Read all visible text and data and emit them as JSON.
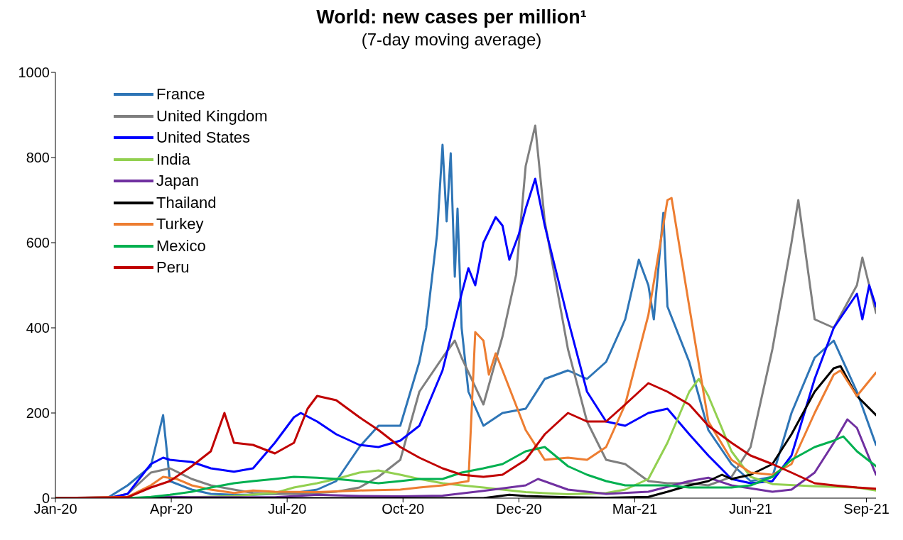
{
  "chart_data": {
    "type": "line",
    "title": "World: new cases per million¹",
    "subtitle": "(7-day moving average)",
    "xlim": [
      "2020-01-22",
      "2021-09-15"
    ],
    "xticks": [
      {
        "value": "2020-01-22",
        "label": "Jan-20"
      },
      {
        "value": "2020-04-16",
        "label": "Apr-20"
      },
      {
        "value": "2020-07-10",
        "label": "Jul-20"
      },
      {
        "value": "2020-10-03",
        "label": "Oct-20"
      },
      {
        "value": "2020-12-27",
        "label": "Dec-20"
      },
      {
        "value": "2021-03-22",
        "label": "Mar-21"
      },
      {
        "value": "2021-06-15",
        "label": "Jun-21"
      },
      {
        "value": "2021-09-08",
        "label": "Sep-21"
      }
    ],
    "ylim": [
      0,
      1000
    ],
    "yticks": [
      0,
      200,
      400,
      600,
      800,
      1000
    ],
    "grid": false,
    "legend": "top left",
    "marker": "none",
    "line_style": "solid",
    "series": [
      {
        "name": "France",
        "color": "#2e75b6",
        "x": [
          "2020-01-22",
          "2020-03-01",
          "2020-03-15",
          "2020-04-01",
          "2020-04-10",
          "2020-04-15",
          "2020-05-01",
          "2020-05-15",
          "2020-06-01",
          "2020-06-15",
          "2020-07-01",
          "2020-07-15",
          "2020-08-01",
          "2020-08-15",
          "2020-09-01",
          "2020-09-15",
          "2020-10-01",
          "2020-10-15",
          "2020-10-20",
          "2020-10-28",
          "2020-11-01",
          "2020-11-04",
          "2020-11-07",
          "2020-11-10",
          "2020-11-12",
          "2020-11-15",
          "2020-11-20",
          "2020-12-01",
          "2020-12-15",
          "2021-01-01",
          "2021-01-15",
          "2021-02-01",
          "2021-02-15",
          "2021-03-01",
          "2021-03-15",
          "2021-03-25",
          "2021-04-01",
          "2021-04-05",
          "2021-04-10",
          "2021-04-12",
          "2021-04-15",
          "2021-05-01",
          "2021-05-15",
          "2021-06-01",
          "2021-06-15",
          "2021-07-01",
          "2021-07-15",
          "2021-08-01",
          "2021-08-15",
          "2021-09-01",
          "2021-09-15"
        ],
        "values": [
          0,
          2,
          30,
          75,
          195,
          40,
          20,
          10,
          8,
          8,
          10,
          12,
          20,
          40,
          120,
          170,
          170,
          320,
          400,
          620,
          830,
          650,
          810,
          520,
          680,
          400,
          250,
          170,
          200,
          210,
          280,
          300,
          280,
          320,
          420,
          560,
          500,
          420,
          600,
          670,
          450,
          320,
          160,
          80,
          40,
          50,
          200,
          330,
          370,
          250,
          125
        ]
      },
      {
        "name": "United Kingdom",
        "color": "#7f7f7f",
        "x": [
          "2020-01-22",
          "2020-03-01",
          "2020-03-15",
          "2020-04-01",
          "2020-04-15",
          "2020-05-01",
          "2020-05-15",
          "2020-06-01",
          "2020-06-15",
          "2020-07-01",
          "2020-07-15",
          "2020-08-01",
          "2020-08-15",
          "2020-09-01",
          "2020-09-15",
          "2020-10-01",
          "2020-10-15",
          "2020-11-01",
          "2020-11-10",
          "2020-11-15",
          "2020-12-01",
          "2020-12-15",
          "2020-12-25",
          "2021-01-01",
          "2021-01-08",
          "2021-01-15",
          "2021-02-01",
          "2021-02-15",
          "2021-03-01",
          "2021-03-15",
          "2021-04-01",
          "2021-04-15",
          "2021-05-01",
          "2021-05-15",
          "2021-06-01",
          "2021-06-15",
          "2021-07-01",
          "2021-07-15",
          "2021-07-20",
          "2021-08-01",
          "2021-08-15",
          "2021-09-01",
          "2021-09-05",
          "2021-09-15"
        ],
        "values": [
          0,
          0,
          10,
          60,
          70,
          45,
          30,
          20,
          12,
          10,
          10,
          12,
          15,
          25,
          50,
          90,
          250,
          330,
          370,
          330,
          220,
          380,
          525,
          780,
          875,
          650,
          350,
          180,
          90,
          80,
          40,
          35,
          35,
          30,
          50,
          120,
          350,
          600,
          700,
          420,
          400,
          500,
          565,
          435
        ]
      },
      {
        "name": "United States",
        "color": "#0000ff",
        "x": [
          "2020-01-22",
          "2020-03-01",
          "2020-03-15",
          "2020-04-01",
          "2020-04-10",
          "2020-04-15",
          "2020-05-01",
          "2020-05-15",
          "2020-06-01",
          "2020-06-15",
          "2020-07-01",
          "2020-07-15",
          "2020-07-20",
          "2020-08-01",
          "2020-08-15",
          "2020-09-01",
          "2020-09-15",
          "2020-10-01",
          "2020-10-15",
          "2020-11-01",
          "2020-11-15",
          "2020-11-20",
          "2020-11-25",
          "2020-12-01",
          "2020-12-10",
          "2020-12-15",
          "2020-12-20",
          "2020-12-27",
          "2021-01-01",
          "2021-01-08",
          "2021-01-15",
          "2021-02-01",
          "2021-02-15",
          "2021-03-01",
          "2021-03-15",
          "2021-04-01",
          "2021-04-15",
          "2021-05-01",
          "2021-05-15",
          "2021-06-01",
          "2021-06-15",
          "2021-07-01",
          "2021-07-15",
          "2021-08-01",
          "2021-08-15",
          "2021-09-01",
          "2021-09-05",
          "2021-09-10",
          "2021-09-15"
        ],
        "values": [
          0,
          0,
          10,
          80,
          95,
          90,
          85,
          70,
          62,
          70,
          130,
          190,
          200,
          180,
          150,
          125,
          120,
          135,
          170,
          300,
          480,
          540,
          500,
          600,
          660,
          640,
          560,
          620,
          680,
          750,
          640,
          420,
          250,
          180,
          170,
          200,
          210,
          150,
          100,
          45,
          35,
          40,
          100,
          280,
          400,
          480,
          420,
          500,
          450
        ]
      },
      {
        "name": "India",
        "color": "#92d050",
        "x": [
          "2020-01-22",
          "2020-04-01",
          "2020-05-01",
          "2020-06-01",
          "2020-07-01",
          "2020-07-15",
          "2020-08-01",
          "2020-08-15",
          "2020-09-01",
          "2020-09-15",
          "2020-10-01",
          "2020-10-15",
          "2020-11-01",
          "2020-11-15",
          "2020-12-01",
          "2020-12-15",
          "2021-01-01",
          "2021-02-01",
          "2021-03-01",
          "2021-03-15",
          "2021-04-01",
          "2021-04-15",
          "2021-05-01",
          "2021-05-08",
          "2021-05-15",
          "2021-06-01",
          "2021-06-15",
          "2021-07-01",
          "2021-08-01",
          "2021-09-01",
          "2021-09-15"
        ],
        "values": [
          0,
          0,
          2,
          5,
          12,
          25,
          35,
          45,
          60,
          65,
          55,
          45,
          35,
          30,
          25,
          20,
          14,
          9,
          12,
          20,
          45,
          130,
          250,
          280,
          240,
          110,
          50,
          33,
          28,
          25,
          18
        ]
      },
      {
        "name": "Japan",
        "color": "#7030a0",
        "x": [
          "2020-01-22",
          "2020-04-01",
          "2020-04-15",
          "2020-05-01",
          "2020-07-01",
          "2020-08-01",
          "2020-09-01",
          "2020-10-01",
          "2020-11-01",
          "2020-12-01",
          "2021-01-01",
          "2021-01-10",
          "2021-02-01",
          "2021-03-01",
          "2021-04-01",
          "2021-05-01",
          "2021-05-15",
          "2021-06-01",
          "2021-07-01",
          "2021-07-15",
          "2021-08-01",
          "2021-08-15",
          "2021-08-25",
          "2021-09-01",
          "2021-09-15"
        ],
        "values": [
          0,
          1,
          3,
          2,
          2,
          8,
          5,
          4,
          6,
          17,
          30,
          45,
          20,
          10,
          15,
          40,
          48,
          30,
          15,
          20,
          60,
          130,
          185,
          165,
          55
        ]
      },
      {
        "name": "Thailand",
        "color": "#000000",
        "x": [
          "2020-01-22",
          "2020-12-01",
          "2020-12-20",
          "2021-01-01",
          "2021-02-01",
          "2021-03-01",
          "2021-04-01",
          "2021-04-15",
          "2021-05-01",
          "2021-05-15",
          "2021-05-25",
          "2021-06-01",
          "2021-06-15",
          "2021-07-01",
          "2021-07-15",
          "2021-08-01",
          "2021-08-15",
          "2021-08-20",
          "2021-09-01",
          "2021-09-15"
        ],
        "values": [
          0,
          0,
          8,
          5,
          2,
          1,
          3,
          15,
          30,
          40,
          55,
          45,
          55,
          80,
          150,
          250,
          305,
          310,
          240,
          195
        ]
      },
      {
        "name": "Turkey",
        "color": "#ed7d31",
        "x": [
          "2020-01-22",
          "2020-03-15",
          "2020-04-01",
          "2020-04-10",
          "2020-04-20",
          "2020-05-01",
          "2020-05-15",
          "2020-06-01",
          "2020-06-15",
          "2020-07-01",
          "2020-08-01",
          "2020-09-01",
          "2020-10-01",
          "2020-10-15",
          "2020-11-01",
          "2020-11-20",
          "2020-11-25",
          "2020-12-01",
          "2020-12-05",
          "2020-12-10",
          "2020-12-15",
          "2021-01-01",
          "2021-01-15",
          "2021-02-01",
          "2021-02-15",
          "2021-03-01",
          "2021-03-15",
          "2021-04-01",
          "2021-04-15",
          "2021-04-18",
          "2021-05-01",
          "2021-05-15",
          "2021-06-01",
          "2021-06-15",
          "2021-07-01",
          "2021-07-15",
          "2021-08-01",
          "2021-08-15",
          "2021-08-20",
          "2021-09-01",
          "2021-09-15"
        ],
        "values": [
          0,
          3,
          30,
          50,
          45,
          30,
          20,
          12,
          18,
          15,
          14,
          18,
          20,
          25,
          30,
          40,
          390,
          370,
          290,
          340,
          300,
          160,
          90,
          95,
          90,
          120,
          220,
          430,
          700,
          705,
          450,
          180,
          90,
          60,
          55,
          80,
          200,
          290,
          300,
          240,
          295
        ]
      },
      {
        "name": "Mexico",
        "color": "#00b050",
        "x": [
          "2020-01-22",
          "2020-03-15",
          "2020-04-01",
          "2020-04-15",
          "2020-05-01",
          "2020-05-15",
          "2020-06-01",
          "2020-06-15",
          "2020-07-01",
          "2020-07-15",
          "2020-08-01",
          "2020-08-15",
          "2020-09-01",
          "2020-09-15",
          "2020-10-01",
          "2020-10-15",
          "2020-11-01",
          "2020-11-15",
          "2020-12-01",
          "2020-12-15",
          "2021-01-01",
          "2021-01-15",
          "2021-02-01",
          "2021-02-15",
          "2021-03-01",
          "2021-03-15",
          "2021-04-01",
          "2021-04-15",
          "2021-05-01",
          "2021-06-01",
          "2021-06-15",
          "2021-07-01",
          "2021-07-15",
          "2021-08-01",
          "2021-08-15",
          "2021-08-22",
          "2021-09-01",
          "2021-09-15"
        ],
        "values": [
          0,
          0,
          3,
          8,
          15,
          25,
          35,
          40,
          45,
          50,
          48,
          45,
          40,
          35,
          40,
          45,
          45,
          60,
          70,
          80,
          110,
          120,
          75,
          55,
          40,
          30,
          30,
          30,
          25,
          25,
          30,
          50,
          90,
          120,
          135,
          145,
          110,
          75
        ]
      },
      {
        "name": "Peru",
        "color": "#c00000",
        "x": [
          "2020-01-22",
          "2020-03-15",
          "2020-04-01",
          "2020-04-15",
          "2020-05-01",
          "2020-05-15",
          "2020-05-25",
          "2020-06-01",
          "2020-06-15",
          "2020-07-01",
          "2020-07-15",
          "2020-07-25",
          "2020-08-01",
          "2020-08-15",
          "2020-09-01",
          "2020-09-15",
          "2020-10-01",
          "2020-10-15",
          "2020-11-01",
          "2020-11-15",
          "2020-12-01",
          "2020-12-15",
          "2021-01-01",
          "2021-01-15",
          "2021-02-01",
          "2021-02-15",
          "2021-03-01",
          "2021-03-15",
          "2021-04-01",
          "2021-04-15",
          "2021-05-01",
          "2021-05-15",
          "2021-06-01",
          "2021-06-15",
          "2021-07-01",
          "2021-07-15",
          "2021-08-01",
          "2021-08-15",
          "2021-09-01",
          "2021-09-15"
        ],
        "values": [
          0,
          2,
          25,
          40,
          75,
          110,
          200,
          130,
          125,
          105,
          130,
          210,
          240,
          230,
          190,
          160,
          120,
          95,
          70,
          55,
          50,
          55,
          90,
          150,
          200,
          180,
          180,
          220,
          270,
          250,
          220,
          170,
          130,
          100,
          80,
          60,
          35,
          30,
          25,
          22
        ]
      }
    ]
  }
}
